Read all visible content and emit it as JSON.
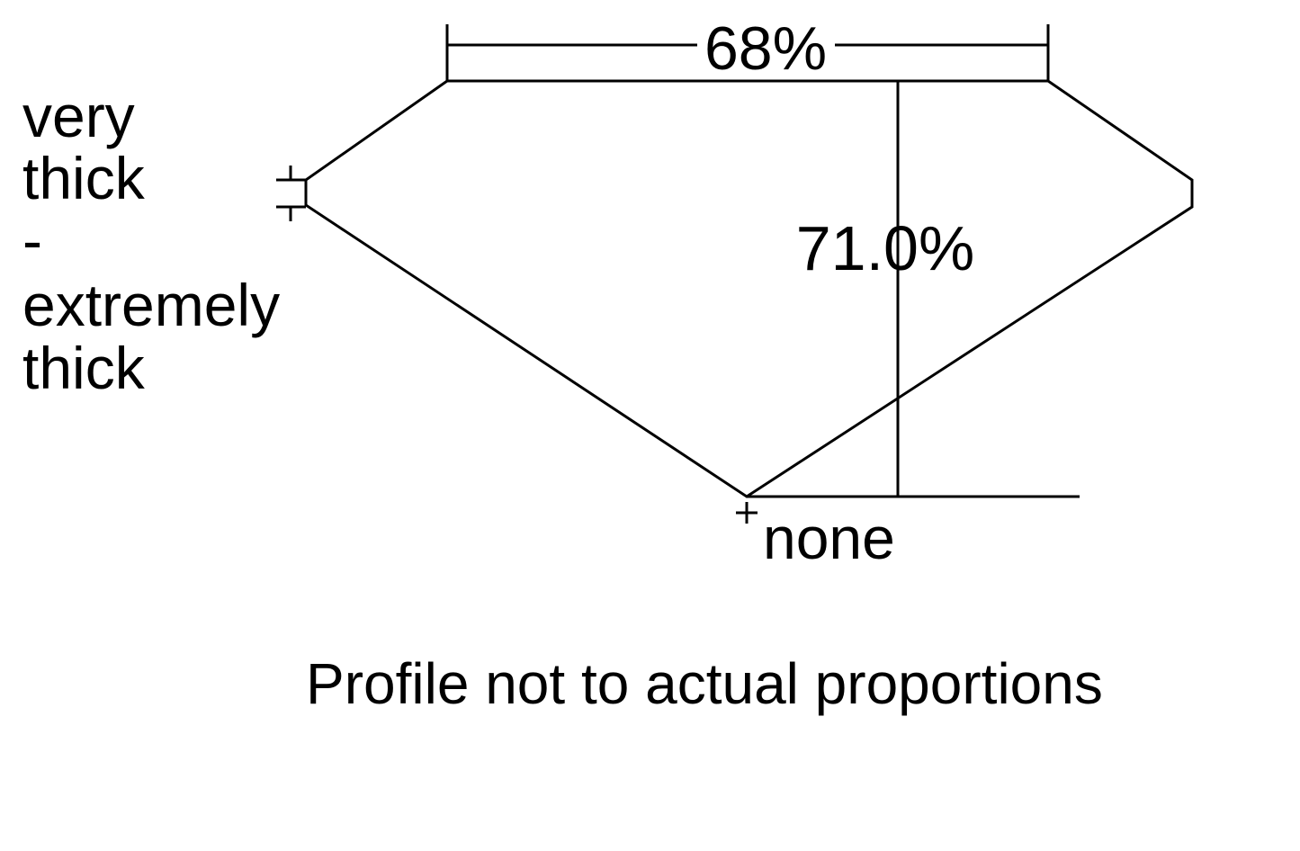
{
  "table_percent": "68%",
  "depth_percent": "71.0%",
  "girdle_label": [
    "very",
    "thick",
    "-",
    "extremely",
    "thick"
  ],
  "culet_label": "none",
  "footnote": "Profile not to actual proportions"
}
